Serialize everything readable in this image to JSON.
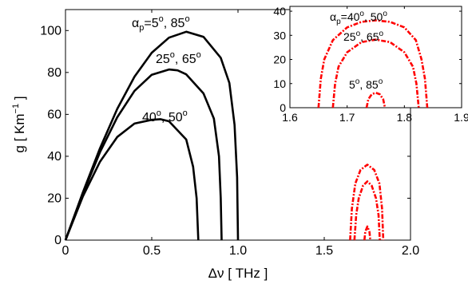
{
  "chart_data": [
    {
      "type": "line",
      "xlabel": "Δν [ THz ]",
      "ylabel": "g [ Km⁻¹ ]",
      "xlim": [
        0,
        2.0
      ],
      "ylim": [
        0,
        110
      ],
      "x_ticks": [
        "0",
        "0.5",
        "1.0",
        "1.5",
        "2.0"
      ],
      "y_ticks": [
        "0",
        "20",
        "40",
        "60",
        "80",
        "100"
      ],
      "series": [
        {
          "style": "solid",
          "color": "#000000",
          "label": "αp=5°, 85°",
          "points": [
            [
              0,
              0
            ],
            [
              0.1,
              22.6
            ],
            [
              0.2,
              43.8
            ],
            [
              0.3,
              62.6
            ],
            [
              0.4,
              78
            ],
            [
              0.5,
              89.4
            ],
            [
              0.6,
              96.6
            ],
            [
              0.7,
              99.4
            ],
            [
              0.8,
              97
            ],
            [
              0.9,
              87
            ],
            [
              0.95,
              75
            ],
            [
              0.98,
              55
            ],
            [
              0.995,
              30
            ],
            [
              1.0,
              0
            ]
          ]
        },
        {
          "style": "solid",
          "color": "#000000",
          "label": "25°, 65°",
          "points": [
            [
              0,
              0
            ],
            [
              0.1,
              22
            ],
            [
              0.2,
              42
            ],
            [
              0.3,
              58.6
            ],
            [
              0.4,
              71.2
            ],
            [
              0.5,
              78.9
            ],
            [
              0.6,
              81.4
            ],
            [
              0.65,
              81
            ],
            [
              0.7,
              79.1
            ],
            [
              0.8,
              70
            ],
            [
              0.86,
              58
            ],
            [
              0.89,
              40
            ],
            [
              0.9,
              20
            ],
            [
              0.905,
              0
            ]
          ]
        },
        {
          "style": "solid",
          "color": "#000000",
          "label": "40°, 50°",
          "points": [
            [
              0,
              0
            ],
            [
              0.1,
              20.7
            ],
            [
              0.2,
              37.4
            ],
            [
              0.3,
              49.2
            ],
            [
              0.4,
              55.6
            ],
            [
              0.5,
              57.4
            ],
            [
              0.55,
              57.7
            ],
            [
              0.6,
              56.7
            ],
            [
              0.7,
              48
            ],
            [
              0.74,
              35
            ],
            [
              0.76,
              20
            ],
            [
              0.77,
              0
            ]
          ]
        },
        {
          "style": "dashdot",
          "color": "#ff0000",
          "label": "αp=40°, 50°",
          "points": [
            [
              1.65,
              0
            ],
            [
              1.66,
              15
            ],
            [
              1.68,
              27
            ],
            [
              1.71,
              33.5
            ],
            [
              1.75,
              36
            ],
            [
              1.79,
              33.5
            ],
            [
              1.82,
              27
            ],
            [
              1.835,
              15
            ],
            [
              1.842,
              0
            ]
          ]
        },
        {
          "style": "dashdot",
          "color": "#ff0000",
          "label": "25°, 65°",
          "points": [
            [
              1.675,
              0
            ],
            [
              1.685,
              12
            ],
            [
              1.7,
              20
            ],
            [
              1.725,
              26
            ],
            [
              1.75,
              28
            ],
            [
              1.775,
              26
            ],
            [
              1.8,
              20
            ],
            [
              1.815,
              12
            ],
            [
              1.822,
              0
            ]
          ]
        },
        {
          "style": "dashdot",
          "color": "#ff0000",
          "label": "5°, 85°",
          "points": [
            [
              1.733,
              0
            ],
            [
              1.738,
              4
            ],
            [
              1.75,
              6.5
            ],
            [
              1.762,
              4
            ],
            [
              1.767,
              0
            ]
          ]
        }
      ]
    },
    {
      "type": "line",
      "inset": true,
      "xlim": [
        1.6,
        1.9
      ],
      "ylim": [
        0,
        42
      ],
      "x_ticks": [
        "1.6",
        "1.7",
        "1.8",
        "1.9"
      ],
      "y_ticks": [
        "0",
        "10",
        "20",
        "30",
        "40"
      ],
      "series": [
        {
          "style": "dashdot",
          "color": "#ff0000",
          "label": "αp=40°, 50°",
          "points": [
            [
              1.65,
              0
            ],
            [
              1.654,
              12
            ],
            [
              1.66,
              20
            ],
            [
              1.675,
              28
            ],
            [
              1.7,
              33.3
            ],
            [
              1.725,
              35.6
            ],
            [
              1.75,
              36.2
            ],
            [
              1.775,
              35.6
            ],
            [
              1.8,
              33.3
            ],
            [
              1.82,
              28
            ],
            [
              1.83,
              20
            ],
            [
              1.836,
              12
            ],
            [
              1.84,
              0
            ]
          ]
        },
        {
          "style": "dashdot",
          "color": "#ff0000",
          "label": "25°, 65°",
          "points": [
            [
              1.675,
              0
            ],
            [
              1.679,
              10
            ],
            [
              1.685,
              17
            ],
            [
              1.7,
              23
            ],
            [
              1.725,
              27.2
            ],
            [
              1.75,
              28.2
            ],
            [
              1.775,
              27.2
            ],
            [
              1.8,
              23
            ],
            [
              1.815,
              17
            ],
            [
              1.821,
              10
            ],
            [
              1.825,
              0
            ]
          ]
        },
        {
          "style": "dashdot",
          "color": "#ff0000",
          "label": "5°, 85°",
          "points": [
            [
              1.734,
              0
            ],
            [
              1.737,
              3.5
            ],
            [
              1.743,
              5.6
            ],
            [
              1.75,
              6.2
            ],
            [
              1.757,
              5.6
            ],
            [
              1.763,
              3.5
            ],
            [
              1.766,
              0
            ]
          ]
        }
      ]
    }
  ]
}
